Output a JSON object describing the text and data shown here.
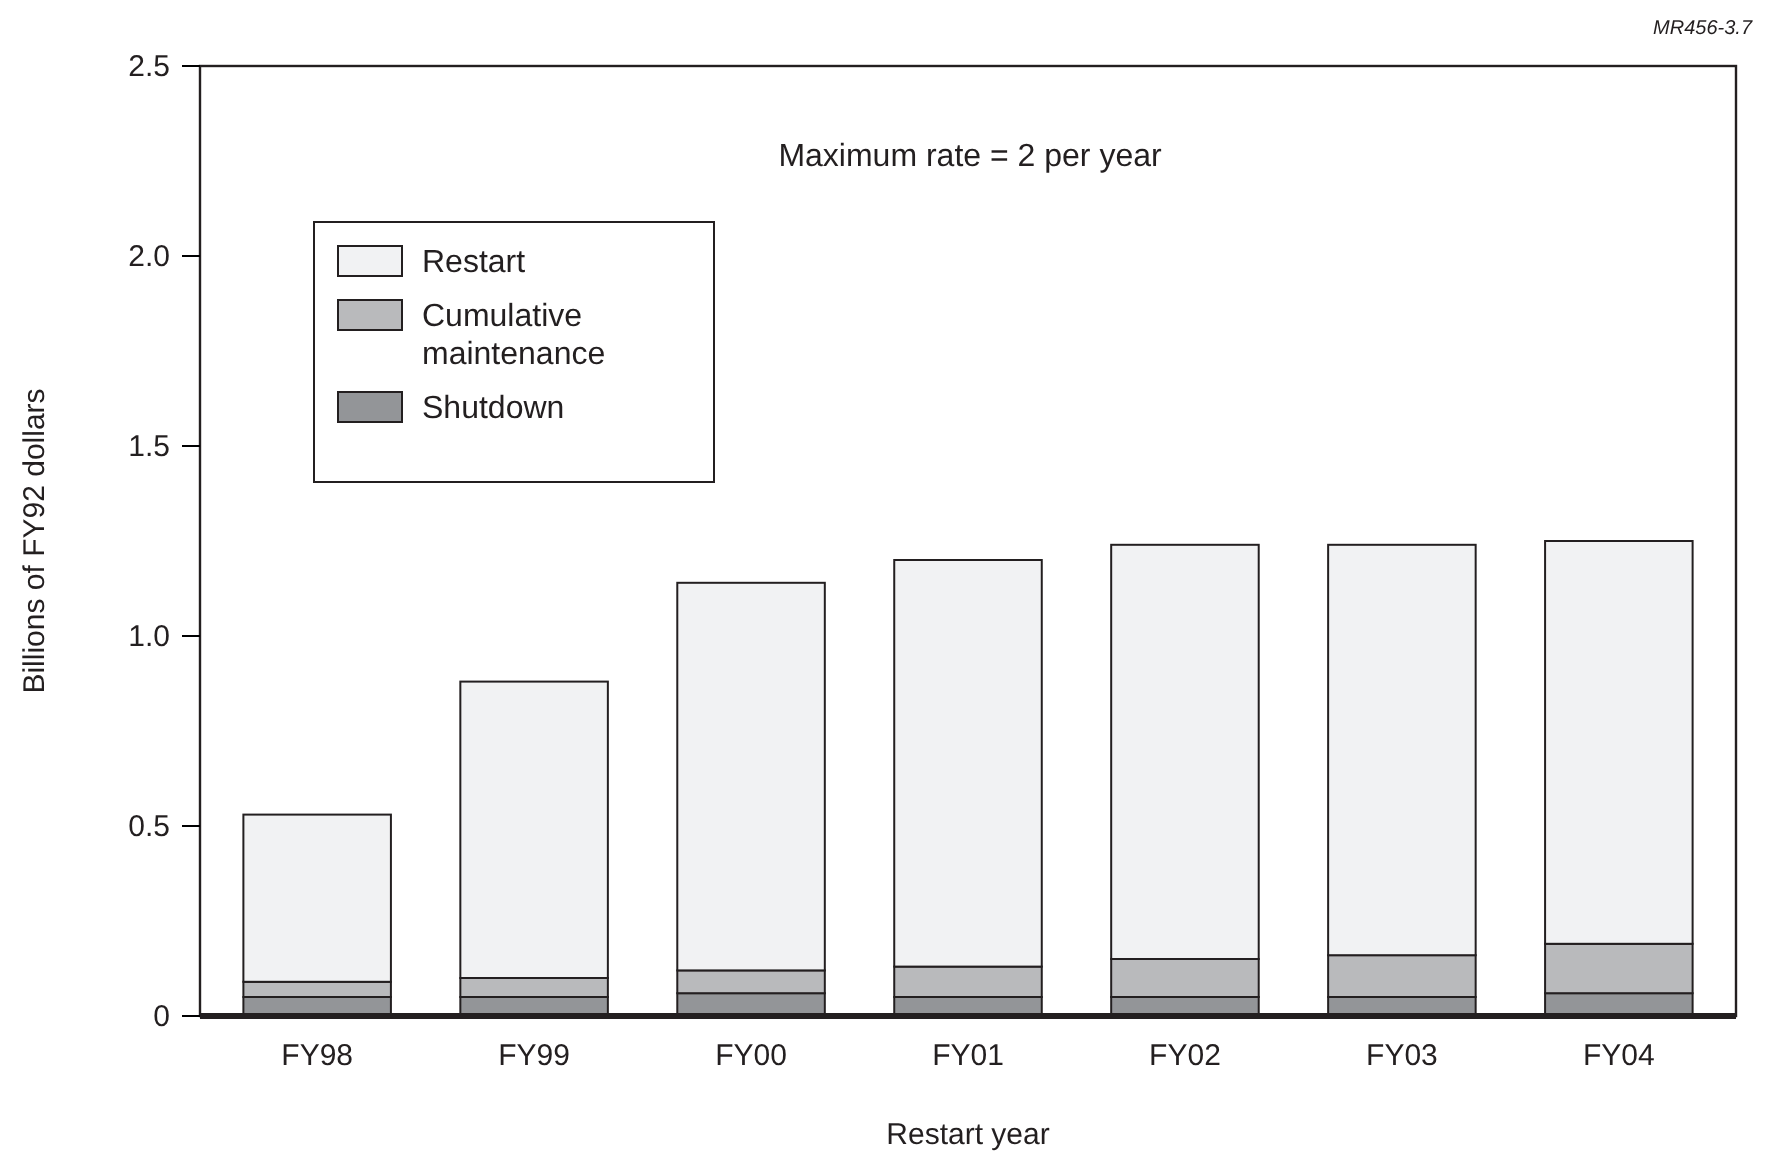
{
  "chart_data": {
    "type": "bar",
    "stacked": true,
    "categories": [
      "FY98",
      "FY99",
      "FY00",
      "FY01",
      "FY02",
      "FY03",
      "FY04"
    ],
    "series": [
      {
        "name": "Shutdown",
        "color": "#939598",
        "values": [
          0.05,
          0.05,
          0.06,
          0.05,
          0.05,
          0.05,
          0.06
        ]
      },
      {
        "name": "Cumulative maintenance",
        "color": "#b9babc",
        "values": [
          0.04,
          0.05,
          0.06,
          0.08,
          0.1,
          0.11,
          0.13
        ]
      },
      {
        "name": "Restart",
        "color": "#f1f2f3",
        "values": [
          0.44,
          0.78,
          1.02,
          1.07,
          1.09,
          1.08,
          1.06
        ]
      }
    ],
    "ylim": [
      0,
      2.5
    ],
    "yticks": [
      0,
      0.5,
      {
        "value": 1,
        "label": "1.0"
      },
      1.5,
      {
        "value": 2,
        "label": "2.0"
      },
      2.5
    ],
    "xlabel": "Restart year",
    "ylabel": "Billions of FY92 dollars",
    "legend": "top left",
    "grid": false,
    "annotations": [
      "Maximum rate = 2 per year",
      "MR456-3.7"
    ]
  }
}
